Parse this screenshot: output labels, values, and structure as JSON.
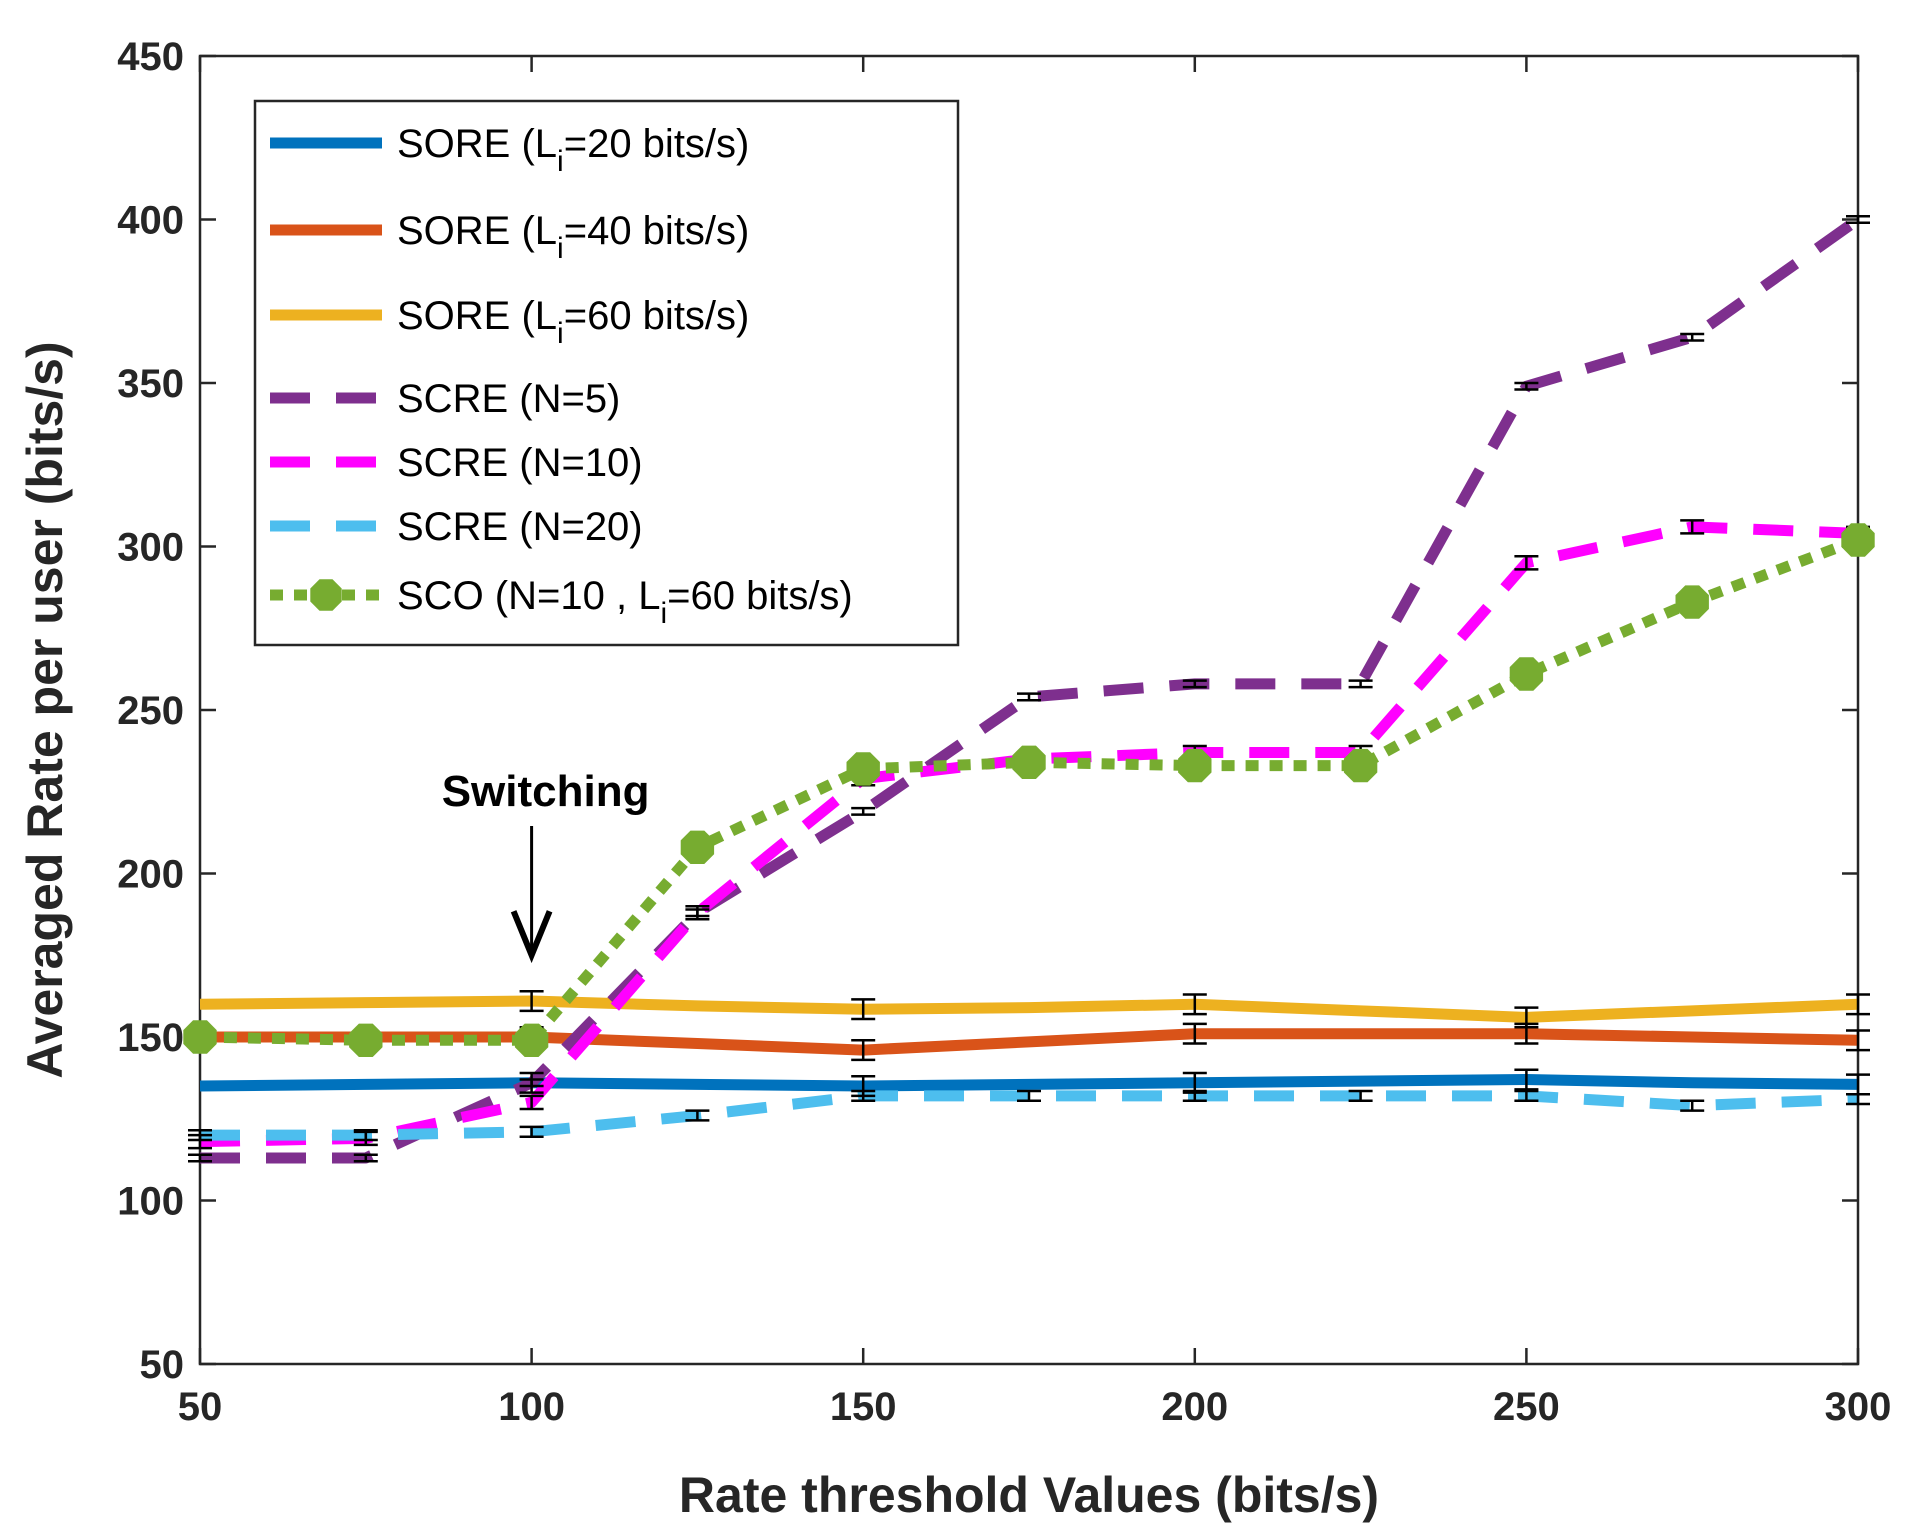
{
  "chart_data": {
    "type": "line",
    "title": "",
    "xlabel": "Rate threshold Values (bits/s)",
    "ylabel": "Averaged Rate per user (bits/s)",
    "xlim": [
      50,
      300
    ],
    "ylim": [
      50,
      450
    ],
    "xticks": [
      50,
      100,
      150,
      200,
      250,
      300
    ],
    "yticks": [
      50,
      100,
      150,
      200,
      250,
      300,
      350,
      400,
      450
    ],
    "grid": false,
    "legend_position": "top-left",
    "x": [
      50,
      75,
      100,
      125,
      150,
      175,
      200,
      225,
      250,
      275,
      300
    ],
    "series": [
      {
        "name": "SORE (L",
        "sub": "i",
        "suffix": "=20 bits/s)",
        "color": "#0072BD",
        "style": "solid",
        "marker": "none",
        "values": [
          135,
          135.5,
          136,
          135.5,
          135,
          135.5,
          136,
          136.5,
          137,
          136,
          135.5
        ],
        "error_x": [
          100,
          150,
          200,
          250,
          300
        ],
        "error": 3
      },
      {
        "name": "SORE (L",
        "sub": "i",
        "suffix": "=40 bits/s)",
        "color": "#D95319",
        "style": "solid",
        "marker": "none",
        "values": [
          150,
          150,
          150,
          148,
          146,
          148.5,
          151,
          151,
          151,
          150,
          149
        ],
        "error_x": [
          100,
          150,
          200,
          250,
          300
        ],
        "error": 3
      },
      {
        "name": "SORE (L",
        "sub": "i",
        "suffix": "=60 bits/s)",
        "color": "#EDB120",
        "style": "solid",
        "marker": "none",
        "values": [
          160,
          160.5,
          161,
          159.5,
          158.5,
          159,
          160,
          158,
          156,
          158,
          160
        ],
        "error_x": [
          100,
          150,
          200,
          250,
          300
        ],
        "error": 3
      },
      {
        "name": "SCRE (N=5)",
        "sub": "",
        "suffix": "",
        "color": "#7E2F8E",
        "style": "dash",
        "marker": "none",
        "values": [
          113,
          113,
          136,
          188,
          219,
          254,
          258,
          258,
          349,
          364,
          400
        ],
        "error_x": [
          50,
          75,
          100,
          125,
          150,
          175,
          200,
          225,
          250,
          275,
          300
        ],
        "error": 1
      },
      {
        "name": "SCRE (N=10)",
        "sub": "",
        "suffix": "",
        "color": "#FF00FF",
        "style": "dash",
        "marker": "none",
        "values": [
          118,
          119,
          130,
          188,
          229,
          235,
          237,
          237,
          295,
          306,
          304
        ],
        "error_x": [
          50,
          75,
          100,
          125,
          150,
          175,
          200,
          225,
          250,
          275,
          300
        ],
        "error": 2
      },
      {
        "name": "SCRE (N=20)",
        "sub": "",
        "suffix": "",
        "color": "#4DBEEE",
        "style": "dash",
        "marker": "none",
        "values": [
          120,
          120,
          121,
          126,
          132,
          132,
          132,
          132,
          132,
          129,
          131
        ],
        "error_x": [
          50,
          75,
          100,
          125,
          150,
          175,
          200,
          225,
          250,
          275,
          300
        ],
        "error": 1.5
      },
      {
        "name": "SCO (N=10 , L",
        "sub": "i",
        "suffix": "=60 bits/s)",
        "color": "#77AC30",
        "style": "dot",
        "marker": "octagon",
        "values": [
          150,
          149,
          149,
          208,
          232,
          234,
          233,
          233,
          261,
          283,
          302
        ],
        "error_x": [],
        "error": 0
      }
    ],
    "annotations": [
      {
        "text": "Switching",
        "arrow_to_x": 100,
        "arrow_to_y": 175
      }
    ]
  }
}
